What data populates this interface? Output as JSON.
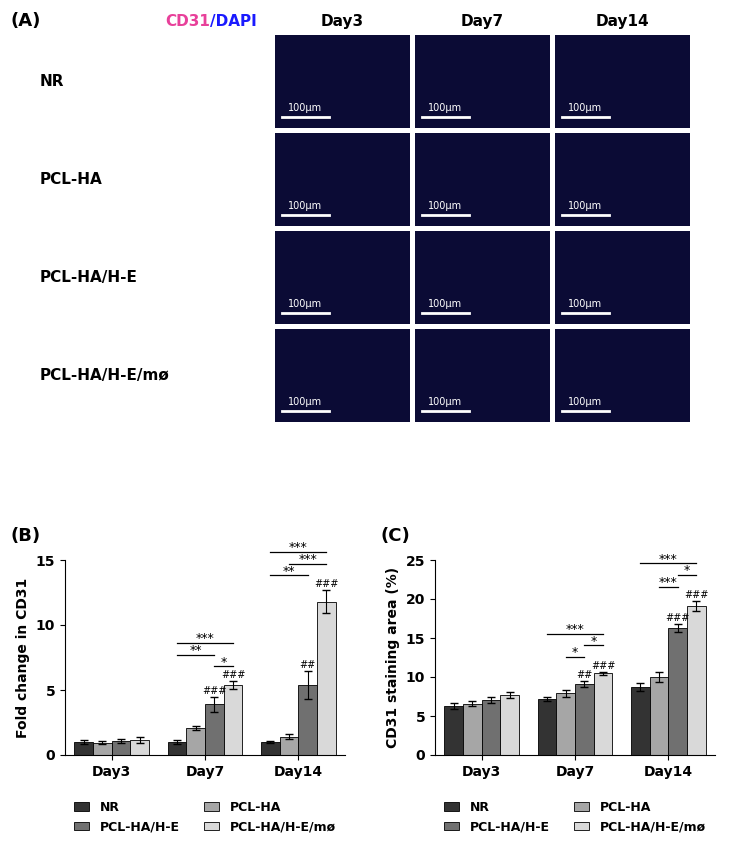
{
  "image_panel": {
    "label": "(A)",
    "stain": [
      {
        "text": "CD31",
        "color": "#e8409a"
      },
      {
        "text": "/DAPI",
        "color": "#1a1aff"
      }
    ],
    "columns": [
      "Day3",
      "Day7",
      "Day14"
    ],
    "rows": [
      "NR",
      "PCL-HA",
      "PCL-HA/H-E",
      "PCL-HA/H-E/mø"
    ],
    "scale_bar": "100μm"
  },
  "chart_data": [
    {
      "type": "bar",
      "panel": "(B)",
      "y_label": "Fold change in CD31",
      "categories": [
        "Day3",
        "Day7",
        "Day14"
      ],
      "ylim": [
        0,
        15
      ],
      "yticks": [
        0,
        5,
        10,
        15
      ],
      "grid": false,
      "legend": "lower center",
      "series": [
        {
          "name": "NR",
          "color": "#333333",
          "values": [
            1.0,
            1.0,
            1.0
          ],
          "errors": [
            0.15,
            0.15,
            0.1
          ],
          "significance": [
            null,
            null,
            null
          ]
        },
        {
          "name": "PCL-HA",
          "color": "#a6a6a6",
          "values": [
            0.95,
            2.1,
            1.4
          ],
          "errors": [
            0.1,
            0.15,
            0.2
          ],
          "significance": [
            null,
            null,
            null
          ]
        },
        {
          "name": "PCL-HA/H-E",
          "color": "#707070",
          "values": [
            1.1,
            3.9,
            5.4
          ],
          "errors": [
            0.15,
            0.6,
            1.1
          ],
          "significance": [
            null,
            "###",
            "##"
          ]
        },
        {
          "name": "PCL-HA/H-E/mø",
          "color": "#d9d9d9",
          "values": [
            1.15,
            5.4,
            11.8
          ],
          "errors": [
            0.25,
            0.3,
            0.9
          ],
          "significance": [
            null,
            "###",
            "###"
          ]
        }
      ],
      "comparisons": [
        {
          "category": "Day7",
          "pair": [
            "NR",
            "PCL-HA/H-E"
          ],
          "label": "**"
        },
        {
          "category": "Day7",
          "pair": [
            "PCL-HA/H-E",
            "PCL-HA/H-E/mø"
          ],
          "label": "*"
        },
        {
          "category": "Day7",
          "pair": [
            "NR",
            "PCL-HA/H-E/mø"
          ],
          "label": "***"
        },
        {
          "category": "Day14",
          "pair": [
            "NR",
            "PCL-HA/H-E"
          ],
          "label": "**"
        },
        {
          "category": "Day14",
          "pair": [
            "PCL-HA",
            "PCL-HA/H-E/mø"
          ],
          "label": "***"
        },
        {
          "category": "Day14",
          "pair": [
            "NR",
            "PCL-HA/H-E/mø"
          ],
          "label": "***"
        }
      ]
    },
    {
      "type": "bar",
      "panel": "(C)",
      "y_label": "CD31 staining area (%)",
      "categories": [
        "Day3",
        "Day7",
        "Day14"
      ],
      "ylim": [
        0,
        25
      ],
      "yticks": [
        0,
        5,
        10,
        15,
        20,
        25
      ],
      "grid": false,
      "legend": "lower center",
      "series": [
        {
          "name": "NR",
          "color": "#333333",
          "values": [
            6.3,
            7.2,
            8.7
          ],
          "errors": [
            0.4,
            0.3,
            0.5
          ],
          "significance": [
            null,
            null,
            null
          ]
        },
        {
          "name": "PCL-HA",
          "color": "#a6a6a6",
          "values": [
            6.6,
            7.9,
            10.0
          ],
          "errors": [
            0.3,
            0.4,
            0.7
          ],
          "significance": [
            null,
            null,
            null
          ]
        },
        {
          "name": "PCL-HA/H-E",
          "color": "#707070",
          "values": [
            7.1,
            9.1,
            16.3
          ],
          "errors": [
            0.4,
            0.4,
            0.5
          ],
          "significance": [
            null,
            "##",
            "###"
          ]
        },
        {
          "name": "PCL-HA/H-E/mø",
          "color": "#d9d9d9",
          "values": [
            7.7,
            10.5,
            19.1
          ],
          "errors": [
            0.4,
            0.2,
            0.6
          ],
          "significance": [
            null,
            "###",
            "###"
          ]
        }
      ],
      "comparisons": [
        {
          "category": "Day7",
          "pair": [
            "PCL-HA",
            "PCL-HA/H-E"
          ],
          "label": "*"
        },
        {
          "category": "Day7",
          "pair": [
            "PCL-HA/H-E",
            "PCL-HA/H-E/mø"
          ],
          "label": "*"
        },
        {
          "category": "Day7",
          "pair": [
            "NR",
            "PCL-HA/H-E/mø"
          ],
          "label": "***"
        },
        {
          "category": "Day14",
          "pair": [
            "PCL-HA",
            "PCL-HA/H-E"
          ],
          "label": "***"
        },
        {
          "category": "Day14",
          "pair": [
            "PCL-HA/H-E",
            "PCL-HA/H-E/mø"
          ],
          "label": "*"
        },
        {
          "category": "Day14",
          "pair": [
            "NR",
            "PCL-HA/H-E/mø"
          ],
          "label": "***"
        }
      ]
    }
  ]
}
